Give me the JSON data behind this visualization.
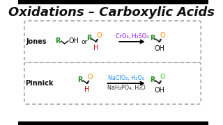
{
  "title": "Oxidations – Carboxylic Acids",
  "title_fontsize": 13,
  "bg_color": "#ffffff",
  "jones_label": "Jones",
  "pinnick_label": "Pinnick",
  "jones_reagent_top": "CrO₃, H₂SO₄",
  "pinnick_reagent_top": "NaClO₂, H₂O₂",
  "pinnick_reagent_bottom": "NaH₂PO₄, H₂O",
  "color_R": "#228B22",
  "color_O_jones": "#FF8C00",
  "color_O_pinnick": "#32CD32",
  "color_H": "#CC0000",
  "color_reagent_jones": "#8B00FF",
  "color_reagent_pinnick_top": "#1E90FF",
  "color_reagent_pinnick_bottom": "#333333",
  "color_black": "#111111",
  "box_edge_color": "#888888"
}
